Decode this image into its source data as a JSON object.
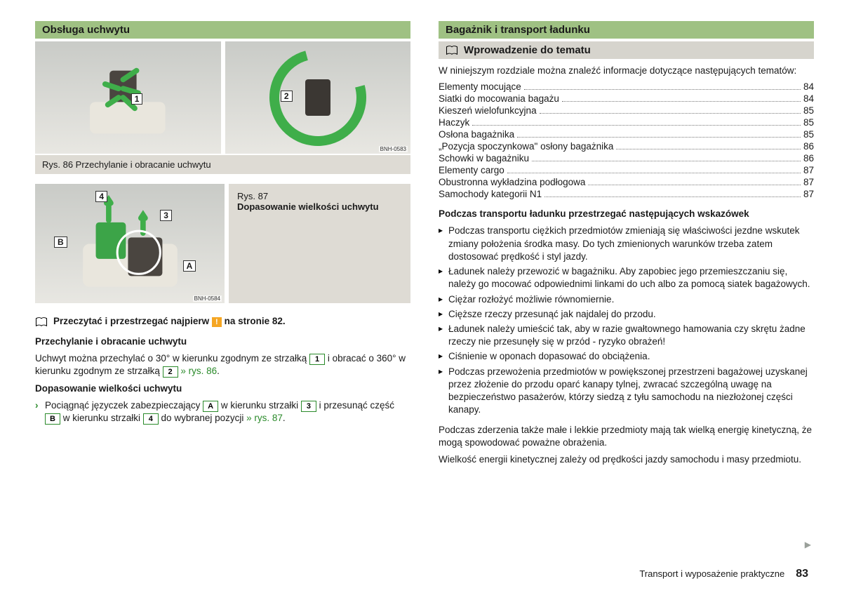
{
  "leftColumn": {
    "heading": "Obsługa uchwytu",
    "fig86": {
      "labelLeft": "1",
      "labelRight": "2",
      "codeRight": "BNH-0583",
      "caption": "Rys. 86  Przechylanie i obracanie uchwytu"
    },
    "fig87": {
      "labels": {
        "n4": "4",
        "n3": "3",
        "A": "A",
        "B": "B"
      },
      "code": "BNH-0584",
      "captionTitle": "Rys. 87",
      "captionText": "Dopasowanie wielkości uchwytu"
    },
    "introLine": {
      "pre": "Przeczytać i przestrzegać najpierw",
      "post": "na stronie  82."
    },
    "sec1": {
      "title": "Przechylanie i obracanie uchwytu",
      "l1a": "Uchwyt można przechylać o 30° w kierunku zgodnym ze strzałką ",
      "l1b": " i obracać o 360° w kierunku zgodnym ze strzałką ",
      "ref": " » rys. 86"
    },
    "sec2": {
      "title": "Dopasowanie wielkości uchwytu",
      "s1a": "Pociągnąć języczek zabezpieczający ",
      "s1b": " w kierunku strzałki ",
      "s1c": " i przesunąć część ",
      "s1d": " w kierunku strzałki ",
      "s1e": " do wybranej pozycji ",
      "ref": "» rys. 87"
    }
  },
  "rightColumn": {
    "heading": "Bagażnik i transport ładunku",
    "subheading": "Wprowadzenie do tematu",
    "intro": "W niniejszym rozdziale można znaleźć informacje dotyczące następujących tematów:",
    "toc": [
      {
        "label": "Elementy mocujące",
        "page": "84"
      },
      {
        "label": "Siatki do mocowania bagażu",
        "page": "84"
      },
      {
        "label": "Kieszeń wielofunkcyjna",
        "page": "85"
      },
      {
        "label": "Haczyk",
        "page": "85"
      },
      {
        "label": "Osłona bagażnika",
        "page": "85"
      },
      {
        "label": "„Pozycja spoczynkowa\" osłony bagażnika",
        "page": "86"
      },
      {
        "label": "Schowki w bagażniku",
        "page": "86"
      },
      {
        "label": "Elementy cargo",
        "page": "87"
      },
      {
        "label": "Obustronna wykładzina podłogowa",
        "page": "87"
      },
      {
        "label": "Samochody kategorii N1",
        "page": "87"
      }
    ],
    "guidelinesTitle": "Podczas transportu ładunku przestrzegać następujących wskazówek",
    "bullets": [
      "Podczas transportu ciężkich przedmiotów zmieniają się właściwości jezdne wskutek zmiany położenia środka masy. Do tych zmienionych warunków trzeba zatem dostosować prędkość i styl jazdy.",
      "Ładunek należy przewozić w bagażniku. Aby zapobiec jego przemieszczaniu się, należy go mocować odpowiednimi linkami do uch albo za pomocą siatek bagażowych.",
      "Ciężar rozłożyć możliwie równomiernie.",
      "Cięższe rzeczy przesunąć jak najdalej do przodu.",
      "Ładunek należy umieścić tak, aby w razie gwałtownego hamowania czy skrętu żadne rzeczy nie przesunęły się w przód - ryzyko obrażeń!",
      "Ciśnienie w oponach dopasować do obciążenia.",
      "Podczas przewożenia przedmiotów w powiększonej przestrzeni bagażowej uzyskanej przez złożenie do przodu oparć kanapy tylnej, zwracać szczególną uwagę na bezpieczeństwo pasażerów, którzy siedzą z tyłu samochodu na niezłożonej części kanapy."
    ],
    "p1": "Podczas zderzenia także małe i lekkie przedmioty mają tak wielką energię kinetyczną, że mogą spowodować poważne obrażenia.",
    "p2": "Wielkość energii kinetycznej zależy od prędkości jazdy samochodu i masy przedmiotu."
  },
  "footer": {
    "text": "Transport i wyposażenie praktyczne",
    "page": "83"
  }
}
